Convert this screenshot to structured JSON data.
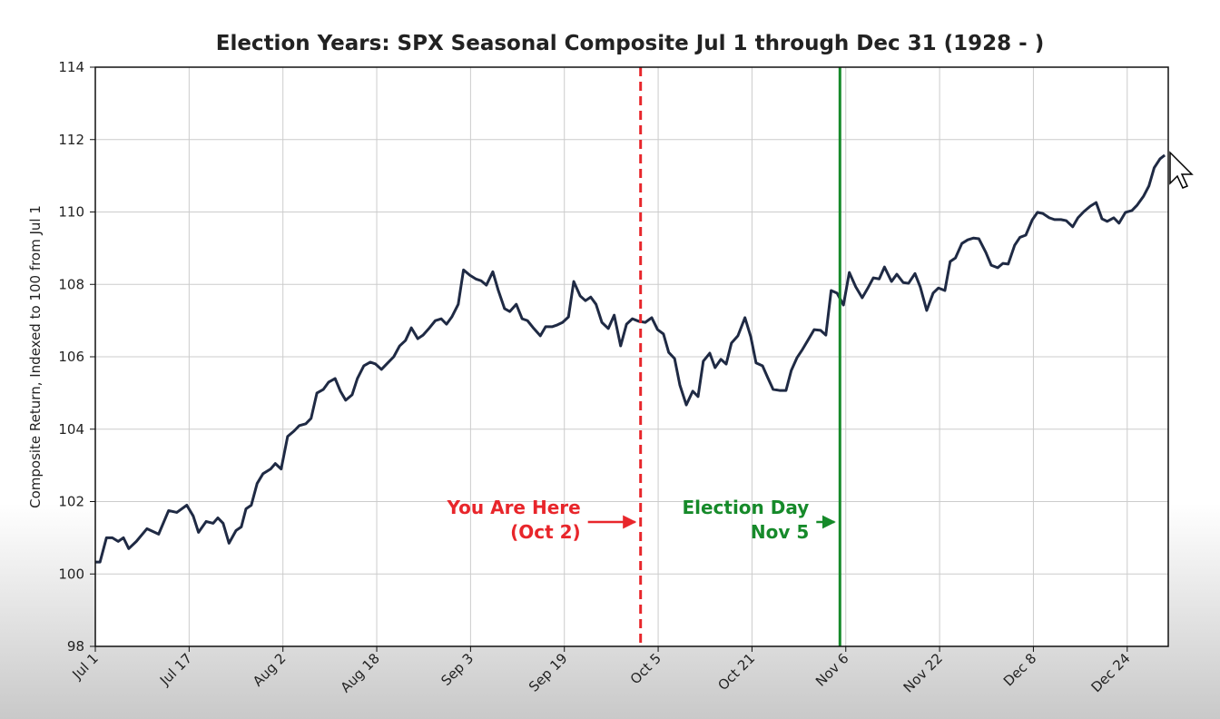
{
  "chart_data": {
    "type": "line",
    "title": "Election Years: SPX Seasonal Composite Jul 1 through Dec 31 (1928 - )",
    "y_label": "Composite Return, Indexed to 100 from Jul 1",
    "color": "#1f2a44",
    "grid": true,
    "xlim": [
      0,
      183
    ],
    "ylim": [
      98,
      114
    ],
    "yticks": [
      98,
      100,
      102,
      104,
      106,
      108,
      110,
      112,
      114
    ],
    "xticks": [
      {
        "value": 0,
        "label": "Jul 1"
      },
      {
        "value": 16,
        "label": "Jul 17"
      },
      {
        "value": 32,
        "label": "Aug 2"
      },
      {
        "value": 48,
        "label": "Aug 18"
      },
      {
        "value": 64,
        "label": "Sep 3"
      },
      {
        "value": 80,
        "label": "Sep 19"
      },
      {
        "value": 96,
        "label": "Oct 5"
      },
      {
        "value": 112,
        "label": "Oct 21"
      },
      {
        "value": 128,
        "label": "Nov 6"
      },
      {
        "value": 144,
        "label": "Nov 22"
      },
      {
        "value": 160,
        "label": "Dec 8"
      },
      {
        "value": 176,
        "label": "Dec 24"
      }
    ],
    "x": [
      0,
      0.8,
      1.9,
      2.9,
      3.9,
      4.8,
      5.7,
      7,
      8.8,
      10.8,
      12.5,
      13.9,
      15.6,
      16.7,
      17.6,
      18.9,
      20.1,
      20.9,
      21.8,
      22.8,
      24,
      24.9,
      25.7,
      26.6,
      27.6,
      28.6,
      29.9,
      30.7,
      31.7,
      32.8,
      33.9,
      34.8,
      35.9,
      36.8,
      37.8,
      38.9,
      39.8,
      40.9,
      41.8,
      42.7,
      43.8,
      44.7,
      45.8,
      46.9,
      47.8,
      48.8,
      49.7,
      50.9,
      51.9,
      52.9,
      53.9,
      55,
      55.9,
      57,
      58,
      59,
      59.9,
      60.8,
      61.9,
      62.8,
      63.9,
      64.9,
      65.8,
      66.7,
      67.8,
      68.7,
      69.8,
      70.7,
      71.8,
      72.8,
      73.7,
      74.8,
      75.9,
      76.8,
      77.9,
      78.8,
      79.7,
      80.7,
      81.6,
      82.7,
      83.6,
      84.5,
      85.4,
      86.4,
      87.5,
      88.5,
      89.6,
      90.6,
      91.6,
      92.7,
      93.8,
      94.9,
      95.9,
      96.9,
      97.8,
      98.8,
      99.7,
      100.8,
      101.9,
      102.8,
      103.7,
      104.8,
      105.7,
      106.7,
      107.6,
      108.5,
      109.6,
      110.8,
      111.8,
      112.7,
      113.8,
      114.7,
      115.6,
      116.7,
      117.8,
      118.7,
      119.7,
      120.6,
      121.7,
      122.6,
      123.7,
      124.6,
      125.5,
      126.5,
      127.6,
      128.6,
      129.7,
      130.8,
      131.7,
      132.7,
      133.7,
      134.6,
      135.8,
      136.7,
      137.8,
      138.7,
      139.8,
      140.7,
      141.8,
      142.9,
      143.8,
      144.9,
      145.8,
      146.7,
      147.8,
      148.8,
      149.8,
      150.7,
      151.9,
      152.8,
      153.9,
      154.8,
      155.7,
      156.8,
      157.7,
      158.7,
      159.8,
      160.7,
      161.6,
      162.7,
      163.6,
      164.7,
      165.6,
      166.7,
      167.6,
      168.6,
      169.7,
      170.7,
      171.7,
      172.6,
      173.7,
      174.6,
      175.7,
      176.8,
      177.7,
      178.8,
      179.7,
      180.6,
      181.6,
      182.4
    ],
    "values": [
      100.33,
      100.33,
      101.0,
      101.0,
      100.9,
      101.0,
      100.7,
      100.9,
      101.25,
      101.1,
      101.75,
      101.7,
      101.9,
      101.6,
      101.15,
      101.45,
      101.4,
      101.55,
      101.4,
      100.85,
      101.2,
      101.3,
      101.8,
      101.9,
      102.5,
      102.77,
      102.9,
      103.05,
      102.9,
      103.8,
      103.95,
      104.1,
      104.15,
      104.3,
      105.0,
      105.1,
      105.3,
      105.4,
      105.05,
      104.8,
      104.95,
      105.4,
      105.75,
      105.85,
      105.8,
      105.65,
      105.8,
      106.0,
      106.3,
      106.45,
      106.8,
      106.5,
      106.6,
      106.8,
      107.0,
      107.05,
      106.9,
      107.1,
      107.45,
      108.4,
      108.25,
      108.15,
      108.1,
      107.98,
      108.35,
      107.85,
      107.33,
      107.25,
      107.45,
      107.05,
      107.0,
      106.78,
      106.58,
      106.83,
      106.83,
      106.88,
      106.95,
      107.1,
      108.08,
      107.68,
      107.55,
      107.65,
      107.45,
      106.95,
      106.78,
      107.15,
      106.3,
      106.9,
      107.05,
      106.98,
      106.95,
      107.08,
      106.75,
      106.63,
      106.12,
      105.95,
      105.22,
      104.67,
      105.05,
      104.9,
      105.88,
      106.1,
      105.7,
      105.93,
      105.8,
      106.38,
      106.58,
      107.08,
      106.55,
      105.83,
      105.75,
      105.42,
      105.1,
      105.07,
      105.07,
      105.62,
      105.98,
      106.2,
      106.5,
      106.75,
      106.73,
      106.6,
      107.83,
      107.76,
      107.43,
      108.33,
      107.93,
      107.63,
      107.88,
      108.18,
      108.15,
      108.48,
      108.08,
      108.28,
      108.05,
      108.03,
      108.3,
      107.93,
      107.28,
      107.76,
      107.9,
      107.83,
      108.63,
      108.73,
      109.13,
      109.23,
      109.28,
      109.26,
      108.88,
      108.53,
      108.46,
      108.58,
      108.56,
      109.08,
      109.3,
      109.36,
      109.78,
      109.99,
      109.96,
      109.84,
      109.79,
      109.79,
      109.76,
      109.59,
      109.84,
      110.01,
      110.16,
      110.26,
      109.81,
      109.74,
      109.84,
      109.69,
      109.99,
      110.04,
      110.19,
      110.44,
      110.72,
      111.22,
      111.47,
      111.57
    ],
    "vlines": [
      {
        "x": 93,
        "color": "#e8262b",
        "style": "dashed"
      },
      {
        "x": 127,
        "color": "#168a2a",
        "style": "solid"
      }
    ],
    "annotations": [
      {
        "lines": [
          "You Are Here",
          "(Oct 2)"
        ],
        "color": "#e8262b",
        "target": 93
      },
      {
        "lines": [
          "Election Day",
          "Nov 5"
        ],
        "color": "#168a2a",
        "target": 127
      }
    ]
  }
}
